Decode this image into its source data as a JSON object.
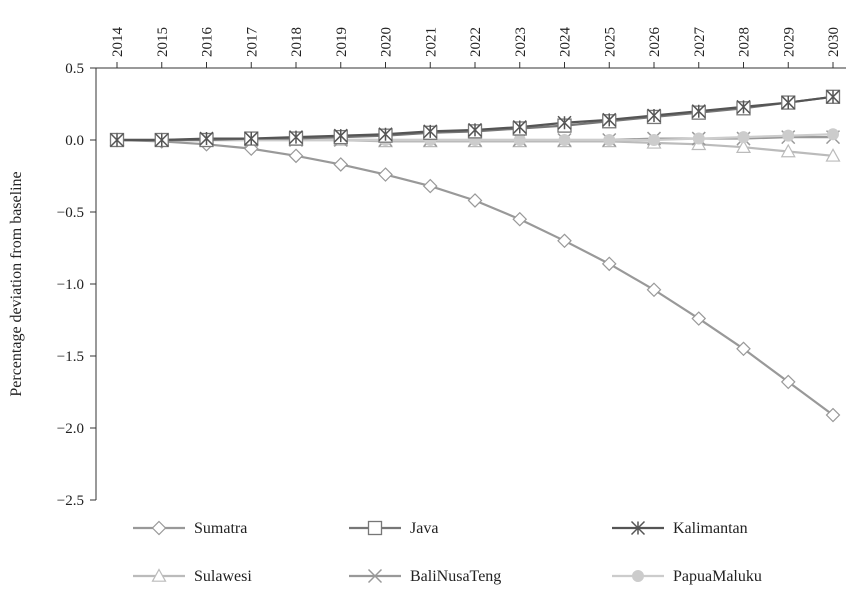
{
  "chart_data": {
    "type": "line",
    "title": "",
    "xlabel": "",
    "ylabel": "Percentage deviation from baseline",
    "ylim": [
      -2.5,
      0.5
    ],
    "yticks": [
      0.5,
      0.0,
      -0.5,
      -1.0,
      -1.5,
      -2.0,
      -2.5
    ],
    "ytick_labels": [
      "0.5",
      "0.0",
      "−0.5",
      "−1.0",
      "−1.5",
      "−2.0",
      "−2.5"
    ],
    "x": [
      "2014",
      "2015",
      "2016",
      "2017",
      "2018",
      "2019",
      "2020",
      "2021",
      "2022",
      "2023",
      "2024",
      "2025",
      "2026",
      "2027",
      "2028",
      "2029",
      "2030"
    ],
    "x_axis_position": "top",
    "x_tick_rotation": "vertical",
    "grid": false,
    "legend_position": "bottom",
    "series": [
      {
        "name": "Sumatra",
        "marker": "diamond-open",
        "color": "#999999",
        "values": [
          0.0,
          -0.01,
          -0.03,
          -0.06,
          -0.11,
          -0.17,
          -0.24,
          -0.32,
          -0.42,
          -0.55,
          -0.7,
          -0.86,
          -1.04,
          -1.24,
          -1.45,
          -1.68,
          -1.91
        ]
      },
      {
        "name": "Java",
        "marker": "square-open",
        "color": "#777777",
        "values": [
          0.0,
          0.0,
          0.0,
          0.01,
          0.01,
          0.02,
          0.03,
          0.05,
          0.06,
          0.08,
          0.1,
          0.13,
          0.16,
          0.19,
          0.22,
          0.26,
          0.3
        ]
      },
      {
        "name": "Kalimantan",
        "marker": "asterisk",
        "color": "#555555",
        "values": [
          0.0,
          0.0,
          0.01,
          0.01,
          0.02,
          0.03,
          0.04,
          0.06,
          0.07,
          0.09,
          0.12,
          0.14,
          0.17,
          0.2,
          0.23,
          0.26,
          0.3
        ]
      },
      {
        "name": "Sulawesi",
        "marker": "triangle-open",
        "color": "#bbbbbb",
        "values": [
          0.0,
          0.0,
          0.0,
          0.0,
          0.0,
          0.0,
          -0.01,
          -0.01,
          -0.01,
          -0.01,
          -0.01,
          -0.01,
          -0.02,
          -0.03,
          -0.05,
          -0.08,
          -0.11
        ]
      },
      {
        "name": "BaliNusaTeng",
        "marker": "x",
        "color": "#999999",
        "values": [
          0.0,
          0.0,
          0.0,
          0.0,
          0.0,
          0.0,
          0.0,
          0.0,
          0.0,
          0.0,
          0.0,
          0.0,
          0.01,
          0.01,
          0.01,
          0.02,
          0.02
        ]
      },
      {
        "name": "PapuaMaluku",
        "marker": "circle-filled",
        "color": "#cccccc",
        "values": [
          0.0,
          0.0,
          0.0,
          0.0,
          0.0,
          0.0,
          0.0,
          0.0,
          0.0,
          0.0,
          0.0,
          0.0,
          0.0,
          0.01,
          0.02,
          0.03,
          0.04
        ]
      }
    ]
  }
}
